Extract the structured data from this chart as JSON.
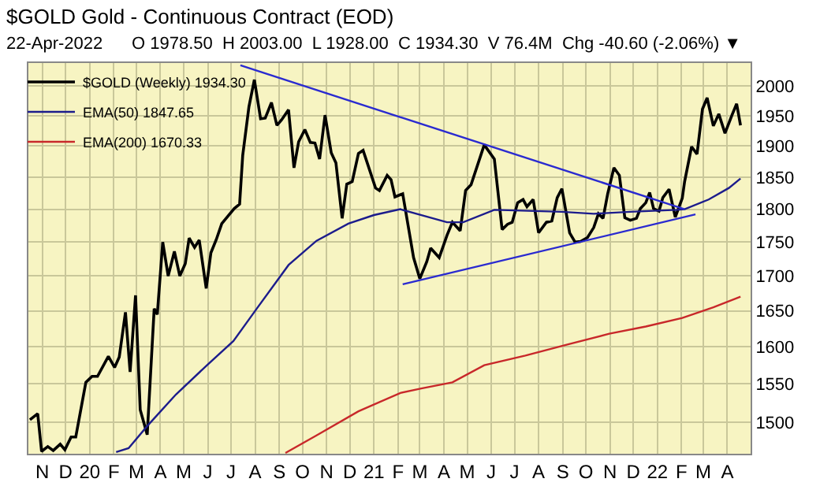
{
  "chart_data": {
    "type": "line",
    "title": "$GOLD Gold - Continuous Contract (EOD)",
    "subtitle": "22-Apr-2022      O 1978.50  H 2003.00  L 1928.00  C 1934.30  V 76.4M  Chg -40.60 (-2.06%) ▼",
    "log": "y",
    "grid": true,
    "legend": "top left",
    "xlim": [
      "2019-10-14",
      "2022-05-01"
    ],
    "xticks": [
      {
        "value": "2019-11-01",
        "label": "N"
      },
      {
        "value": "2019-12-01",
        "label": "D"
      },
      {
        "value": "2020-01-01",
        "label": "20"
      },
      {
        "value": "2020-02-01",
        "label": "F"
      },
      {
        "value": "2020-03-01",
        "label": "M"
      },
      {
        "value": "2020-04-01",
        "label": "A"
      },
      {
        "value": "2020-05-01",
        "label": "M"
      },
      {
        "value": "2020-06-01",
        "label": "J"
      },
      {
        "value": "2020-07-01",
        "label": "J"
      },
      {
        "value": "2020-08-01",
        "label": "A"
      },
      {
        "value": "2020-09-01",
        "label": "S"
      },
      {
        "value": "2020-10-01",
        "label": "O"
      },
      {
        "value": "2020-11-01",
        "label": "N"
      },
      {
        "value": "2020-12-01",
        "label": "D"
      },
      {
        "value": "2021-01-01",
        "label": "21"
      },
      {
        "value": "2021-02-01",
        "label": "F"
      },
      {
        "value": "2021-03-01",
        "label": "M"
      },
      {
        "value": "2021-04-01",
        "label": "A"
      },
      {
        "value": "2021-05-01",
        "label": "M"
      },
      {
        "value": "2021-06-01",
        "label": "J"
      },
      {
        "value": "2021-07-01",
        "label": "J"
      },
      {
        "value": "2021-08-01",
        "label": "A"
      },
      {
        "value": "2021-09-01",
        "label": "S"
      },
      {
        "value": "2021-10-01",
        "label": "O"
      },
      {
        "value": "2021-11-01",
        "label": "N"
      },
      {
        "value": "2021-12-01",
        "label": "D"
      },
      {
        "value": "2022-01-01",
        "label": "22"
      },
      {
        "value": "2022-02-01",
        "label": "F"
      },
      {
        "value": "2022-03-01",
        "label": "M"
      },
      {
        "value": "2022-04-01",
        "label": "A"
      }
    ],
    "ylim": [
      1460,
      2040
    ],
    "yticks": [
      1500,
      1550,
      1600,
      1650,
      1700,
      1750,
      1800,
      1850,
      1900,
      1950,
      2000
    ],
    "series": [
      {
        "name": "$GOLD (Weekly) 1934.30",
        "color": "#000000",
        "x": [
          "2019-10-16",
          "2019-10-26",
          "2019-10-31",
          "2019-11-08",
          "2019-11-15",
          "2019-11-24",
          "2019-11-30",
          "2019-12-08",
          "2019-12-14",
          "2019-12-27",
          "2020-01-04",
          "2020-01-11",
          "2020-01-25",
          "2020-02-02",
          "2020-02-08",
          "2020-02-16",
          "2020-02-22",
          "2020-02-29",
          "2020-03-06",
          "2020-03-15",
          "2020-03-24",
          "2020-03-28",
          "2020-04-04",
          "2020-04-11",
          "2020-04-19",
          "2020-04-26",
          "2020-05-03",
          "2020-05-08",
          "2020-05-15",
          "2020-05-21",
          "2020-05-30",
          "2020-06-05",
          "2020-06-12",
          "2020-06-19",
          "2020-06-28",
          "2020-07-05",
          "2020-07-12",
          "2020-07-16",
          "2020-07-24",
          "2020-07-31",
          "2020-08-08",
          "2020-08-14",
          "2020-08-22",
          "2020-08-29",
          "2020-09-04",
          "2020-09-13",
          "2020-09-20",
          "2020-09-26",
          "2020-10-04",
          "2020-10-11",
          "2020-10-17",
          "2020-10-23",
          "2020-10-30",
          "2020-11-07",
          "2020-11-13",
          "2020-11-21",
          "2020-11-27",
          "2020-12-04",
          "2020-12-12",
          "2020-12-18",
          "2021-01-03",
          "2021-01-08",
          "2021-01-18",
          "2021-01-23",
          "2021-01-28",
          "2021-02-07",
          "2021-02-21",
          "2021-03-01",
          "2021-03-10",
          "2021-03-15",
          "2021-03-26",
          "2021-04-05",
          "2021-04-12",
          "2021-04-22",
          "2021-04-29",
          "2021-05-06",
          "2021-05-23",
          "2021-06-05",
          "2021-06-15",
          "2021-06-22",
          "2021-06-28",
          "2021-07-05",
          "2021-07-12",
          "2021-07-17",
          "2021-07-25",
          "2021-08-01",
          "2021-08-11",
          "2021-08-18",
          "2021-08-25",
          "2021-08-31",
          "2021-09-10",
          "2021-09-17",
          "2021-09-24",
          "2021-10-03",
          "2021-10-11",
          "2021-10-17",
          "2021-10-23",
          "2021-10-29",
          "2021-11-06",
          "2021-11-13",
          "2021-11-20",
          "2021-11-27",
          "2021-12-05",
          "2021-12-10",
          "2021-12-17",
          "2021-12-22",
          "2021-12-27",
          "2022-01-03",
          "2022-01-08",
          "2022-01-16",
          "2022-01-24",
          "2022-02-02",
          "2022-02-05",
          "2022-02-14",
          "2022-02-21",
          "2022-02-28",
          "2022-03-06",
          "2022-03-14",
          "2022-03-21",
          "2022-03-29",
          "2022-04-07",
          "2022-04-13",
          "2022-04-18"
        ],
        "values": [
          1503,
          1511,
          1463,
          1469,
          1464,
          1472,
          1465,
          1481,
          1481,
          1552,
          1560,
          1560,
          1587,
          1572,
          1586,
          1648,
          1566,
          1672,
          1516,
          1484,
          1653,
          1645,
          1750,
          1700,
          1736,
          1700,
          1718,
          1756,
          1742,
          1753,
          1682,
          1734,
          1754,
          1778,
          1791,
          1801,
          1808,
          1885,
          1965,
          2011,
          1945,
          1946,
          1972,
          1934,
          1943,
          1960,
          1865,
          1907,
          1927,
          1906,
          1905,
          1879,
          1951,
          1889,
          1873,
          1786,
          1839,
          1843,
          1888,
          1893,
          1833,
          1829,
          1853,
          1846,
          1819,
          1824,
          1727,
          1696,
          1721,
          1741,
          1727,
          1760,
          1780,
          1767,
          1829,
          1838,
          1902,
          1879,
          1769,
          1777,
          1780,
          1810,
          1815,
          1804,
          1815,
          1764,
          1780,
          1782,
          1818,
          1832,
          1764,
          1750,
          1751,
          1757,
          1772,
          1793,
          1786,
          1824,
          1865,
          1853,
          1787,
          1783,
          1786,
          1801,
          1810,
          1826,
          1801,
          1797,
          1818,
          1831,
          1788,
          1817,
          1843,
          1899,
          1887,
          1961,
          1980,
          1933,
          1953,
          1921,
          1951,
          1970,
          1934
        ]
      },
      {
        "name": "EMA(50) 1847.65",
        "color": "#1c1c8c",
        "x": [
          "2020-02-04",
          "2020-02-20",
          "2020-03-15",
          "2020-04-21",
          "2020-05-31",
          "2020-07-04",
          "2020-08-03",
          "2020-09-13",
          "2020-10-19",
          "2020-11-29",
          "2021-01-01",
          "2021-02-04",
          "2021-04-05",
          "2021-04-26",
          "2021-06-05",
          "2021-08-31",
          "2021-10-11",
          "2021-11-27",
          "2022-01-26",
          "2022-02-05",
          "2022-03-08",
          "2022-04-03",
          "2022-04-18"
        ],
        "values": [
          1462,
          1467,
          1495,
          1536,
          1575,
          1608,
          1653,
          1716,
          1752,
          1778,
          1791,
          1800,
          1780,
          1780,
          1799,
          1796,
          1793,
          1796,
          1799,
          1800,
          1815,
          1833,
          1848
        ]
      },
      {
        "name": "EMA(200) 1670.33",
        "color": "#c8282a",
        "x": [
          "2020-09-09",
          "2020-10-19",
          "2020-12-12",
          "2021-02-04",
          "2021-03-03",
          "2021-04-12",
          "2021-05-23",
          "2021-07-15",
          "2021-09-07",
          "2021-10-31",
          "2021-12-17",
          "2022-02-02",
          "2022-03-14",
          "2022-04-18"
        ],
        "values": [
          1461,
          1483,
          1514,
          1538,
          1544,
          1552,
          1575,
          1588,
          1603,
          1618,
          1628,
          1640,
          1655,
          1670
        ]
      },
      {
        "color": "#2a2ad0",
        "x": [
          "2020-07-13",
          "2022-02-05"
        ],
        "values": [
          2036,
          1800
        ]
      },
      {
        "color": "#2a2ad0",
        "x": [
          "2021-02-07",
          "2022-02-19"
        ],
        "values": [
          1688,
          1792
        ]
      }
    ]
  }
}
